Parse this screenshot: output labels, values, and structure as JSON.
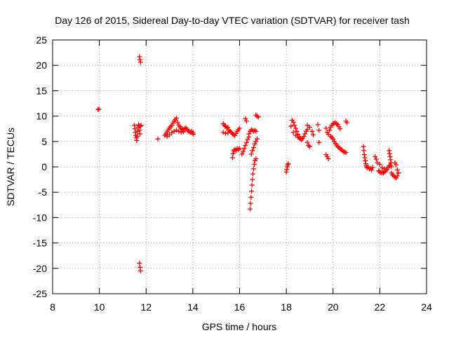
{
  "chart_data": {
    "type": "scatter",
    "title": "Day 126 of 2015, Sidereal Day-to-day VTEC variation (SDTVAR) for receiver tash",
    "xlabel": "GPS time / hours",
    "ylabel": "SDTVAR / TECUs",
    "xlim": [
      8,
      24
    ],
    "ylim": [
      -25,
      25
    ],
    "x_ticks": [
      8,
      10,
      12,
      14,
      16,
      18,
      20,
      22,
      24
    ],
    "y_ticks": [
      -25,
      -20,
      -15,
      -10,
      -5,
      0,
      5,
      10,
      15,
      20,
      25
    ],
    "x_tick_labels": [
      "8",
      "10",
      "12",
      "14",
      "16",
      "18",
      "20",
      "22",
      "24"
    ],
    "y_tick_labels": [
      "-25",
      "-20",
      "-15",
      "-10",
      "-5",
      "0",
      "5",
      "10",
      "15",
      "20",
      "25"
    ],
    "grid": true,
    "marker": "plus",
    "marker_color": "#ff0000",
    "series": [
      {
        "name": "SDTVAR",
        "points": [
          [
            9.95,
            11.3
          ],
          [
            9.98,
            11.4
          ],
          [
            11.72,
            21.7
          ],
          [
            11.74,
            21.1
          ],
          [
            11.76,
            20.6
          ],
          [
            11.72,
            -19.0
          ],
          [
            11.74,
            -19.8
          ],
          [
            11.76,
            -20.5
          ],
          [
            11.5,
            8.2
          ],
          [
            11.52,
            7.5
          ],
          [
            11.54,
            6.8
          ],
          [
            11.56,
            6.2
          ],
          [
            11.58,
            5.7
          ],
          [
            11.6,
            5.2
          ],
          [
            11.62,
            6.0
          ],
          [
            11.64,
            7.0
          ],
          [
            11.66,
            7.8
          ],
          [
            11.68,
            8.3
          ],
          [
            11.7,
            8.1
          ],
          [
            11.72,
            7.2
          ],
          [
            11.74,
            6.5
          ],
          [
            11.76,
            8.0
          ],
          [
            11.78,
            8.2
          ],
          [
            12.5,
            5.5
          ],
          [
            12.8,
            6.2
          ],
          [
            12.85,
            6.5
          ],
          [
            12.9,
            6.9
          ],
          [
            12.95,
            7.3
          ],
          [
            13.0,
            7.6
          ],
          [
            13.05,
            7.9
          ],
          [
            13.1,
            8.2
          ],
          [
            13.15,
            8.6
          ],
          [
            13.2,
            9.0
          ],
          [
            13.25,
            9.3
          ],
          [
            13.3,
            9.6
          ],
          [
            13.35,
            8.7
          ],
          [
            13.4,
            8.2
          ],
          [
            13.45,
            7.9
          ],
          [
            13.5,
            7.6
          ],
          [
            13.55,
            7.4
          ],
          [
            13.6,
            7.3
          ],
          [
            13.65,
            7.5
          ],
          [
            13.7,
            7.7
          ],
          [
            13.75,
            7.4
          ],
          [
            13.8,
            7.1
          ],
          [
            13.85,
            6.9
          ],
          [
            13.9,
            6.8
          ],
          [
            13.95,
            7.0
          ],
          [
            14.0,
            6.7
          ],
          [
            14.02,
            6.4
          ],
          [
            12.9,
            6.0
          ],
          [
            13.0,
            6.3
          ],
          [
            13.1,
            6.7
          ],
          [
            13.2,
            7.0
          ],
          [
            13.3,
            7.2
          ],
          [
            13.4,
            7.0
          ],
          [
            13.5,
            6.8
          ],
          [
            13.6,
            6.9
          ],
          [
            15.3,
            8.5
          ],
          [
            15.35,
            8.2
          ],
          [
            15.4,
            8.0
          ],
          [
            15.45,
            7.6
          ],
          [
            15.5,
            7.8
          ],
          [
            15.55,
            7.2
          ],
          [
            15.6,
            7.0
          ],
          [
            15.65,
            6.8
          ],
          [
            15.7,
            6.5
          ],
          [
            15.75,
            6.3
          ],
          [
            15.8,
            6.2
          ],
          [
            15.85,
            6.6
          ],
          [
            15.9,
            7.0
          ],
          [
            15.95,
            7.3
          ],
          [
            16.0,
            7.6
          ],
          [
            15.3,
            6.8
          ],
          [
            15.4,
            6.6
          ],
          [
            15.5,
            6.7
          ],
          [
            15.7,
            1.8
          ],
          [
            15.72,
            2.6
          ],
          [
            15.75,
            3.2
          ],
          [
            15.8,
            3.4
          ],
          [
            15.85,
            3.2
          ],
          [
            15.9,
            3.6
          ],
          [
            15.95,
            3.4
          ],
          [
            16.0,
            3.6
          ],
          [
            16.1,
            2.5
          ],
          [
            16.15,
            3.0
          ],
          [
            16.2,
            3.6
          ],
          [
            16.25,
            4.2
          ],
          [
            16.3,
            4.8
          ],
          [
            16.35,
            5.4
          ],
          [
            16.4,
            5.9
          ],
          [
            16.25,
            9.5
          ],
          [
            16.3,
            9.0
          ],
          [
            16.4,
            6.5
          ],
          [
            16.45,
            7.0
          ],
          [
            16.5,
            7.3
          ],
          [
            16.55,
            7.2
          ],
          [
            16.6,
            7.0
          ],
          [
            16.65,
            7.2
          ],
          [
            16.7,
            7.0
          ],
          [
            16.7,
            10.2
          ],
          [
            16.75,
            10.0
          ],
          [
            16.8,
            9.8
          ],
          [
            16.45,
            -8.3
          ],
          [
            16.47,
            -7.2
          ],
          [
            16.49,
            -6.0
          ],
          [
            16.51,
            -4.8
          ],
          [
            16.53,
            -3.6
          ],
          [
            16.55,
            -2.5
          ],
          [
            16.57,
            -1.4
          ],
          [
            16.6,
            -0.4
          ],
          [
            16.63,
            0.5
          ],
          [
            16.66,
            1.2
          ],
          [
            16.7,
            1.6
          ],
          [
            16.5,
            2.5
          ],
          [
            16.55,
            3.2
          ],
          [
            16.6,
            3.8
          ],
          [
            16.65,
            4.5
          ],
          [
            16.7,
            5.0
          ],
          [
            16.75,
            5.5
          ],
          [
            18.0,
            -1.0
          ],
          [
            18.02,
            -0.5
          ],
          [
            18.04,
            0.0
          ],
          [
            18.06,
            0.4
          ],
          [
            18.08,
            0.6
          ],
          [
            18.2,
            8.0
          ],
          [
            18.25,
            9.2
          ],
          [
            18.3,
            8.8
          ],
          [
            18.35,
            8.2
          ],
          [
            18.4,
            7.6
          ],
          [
            18.45,
            7.0
          ],
          [
            18.5,
            6.4
          ],
          [
            18.55,
            5.9
          ],
          [
            18.6,
            5.5
          ],
          [
            18.65,
            5.3
          ],
          [
            18.7,
            5.6
          ],
          [
            18.75,
            6.0
          ],
          [
            18.8,
            6.5
          ],
          [
            18.85,
            7.0
          ],
          [
            18.9,
            7.4
          ],
          [
            18.3,
            6.8
          ],
          [
            18.4,
            6.2
          ],
          [
            18.5,
            5.8
          ],
          [
            18.6,
            5.6
          ],
          [
            18.9,
            8.2
          ],
          [
            19.0,
            7.8
          ],
          [
            19.1,
            7.0
          ],
          [
            19.15,
            6.3
          ],
          [
            18.9,
            4.8
          ],
          [
            18.95,
            4.2
          ],
          [
            19.0,
            4.0
          ],
          [
            19.35,
            8.3
          ],
          [
            19.4,
            7.2
          ],
          [
            19.4,
            4.8
          ],
          [
            19.7,
            2.4
          ],
          [
            19.75,
            2.0
          ],
          [
            19.8,
            1.6
          ],
          [
            19.7,
            7.6
          ],
          [
            19.75,
            6.8
          ],
          [
            19.8,
            6.4
          ],
          [
            19.85,
            7.2
          ],
          [
            19.9,
            7.8
          ],
          [
            19.95,
            8.2
          ],
          [
            20.0,
            8.5
          ],
          [
            20.05,
            8.6
          ],
          [
            20.1,
            8.7
          ],
          [
            20.15,
            8.5
          ],
          [
            20.2,
            8.3
          ],
          [
            20.25,
            7.9
          ],
          [
            20.3,
            7.5
          ],
          [
            19.9,
            6.0
          ],
          [
            19.95,
            5.8
          ],
          [
            20.0,
            5.5
          ],
          [
            20.05,
            5.0
          ],
          [
            20.1,
            4.6
          ],
          [
            20.15,
            4.3
          ],
          [
            20.2,
            4.0
          ],
          [
            20.25,
            3.8
          ],
          [
            20.3,
            3.6
          ],
          [
            20.35,
            3.4
          ],
          [
            20.4,
            3.2
          ],
          [
            20.45,
            3.0
          ],
          [
            20.5,
            2.9
          ],
          [
            20.55,
            2.8
          ],
          [
            20.55,
            9.0
          ],
          [
            20.6,
            8.7
          ],
          [
            21.3,
            4.0
          ],
          [
            21.32,
            3.2
          ],
          [
            21.34,
            2.4
          ],
          [
            21.36,
            1.8
          ],
          [
            21.38,
            1.2
          ],
          [
            21.4,
            0.6
          ],
          [
            21.42,
            0.2
          ],
          [
            21.45,
            -0.2
          ],
          [
            21.5,
            0.0
          ],
          [
            21.55,
            -0.4
          ],
          [
            21.6,
            -0.3
          ],
          [
            21.65,
            -0.6
          ],
          [
            21.7,
            -0.1
          ],
          [
            21.8,
            2.0
          ],
          [
            21.85,
            1.5
          ],
          [
            21.9,
            0.8
          ],
          [
            21.95,
            -0.8
          ],
          [
            22.0,
            -1.0
          ],
          [
            22.05,
            -1.2
          ],
          [
            22.1,
            -1.1
          ],
          [
            22.15,
            -1.2
          ],
          [
            22.2,
            -1.0
          ],
          [
            22.25,
            -0.8
          ],
          [
            22.3,
            -0.5
          ],
          [
            22.35,
            -0.2
          ],
          [
            22.4,
            0.2
          ],
          [
            22.45,
            0.3
          ],
          [
            22.5,
            0.0
          ],
          [
            22.0,
            0.5
          ],
          [
            22.1,
            -0.2
          ],
          [
            22.2,
            -0.4
          ],
          [
            22.4,
            3.2
          ],
          [
            22.42,
            2.6
          ],
          [
            22.44,
            2.0
          ],
          [
            22.46,
            1.4
          ],
          [
            22.48,
            0.8
          ],
          [
            22.5,
            -1.2
          ],
          [
            22.55,
            -1.6
          ],
          [
            22.6,
            -1.8
          ],
          [
            22.65,
            -2.0
          ],
          [
            22.7,
            -2.2
          ],
          [
            22.75,
            -1.8
          ],
          [
            22.8,
            -1.2
          ],
          [
            22.75,
            -0.6
          ],
          [
            22.7,
            0.4
          ],
          [
            22.65,
            0.8
          ]
        ]
      }
    ]
  }
}
